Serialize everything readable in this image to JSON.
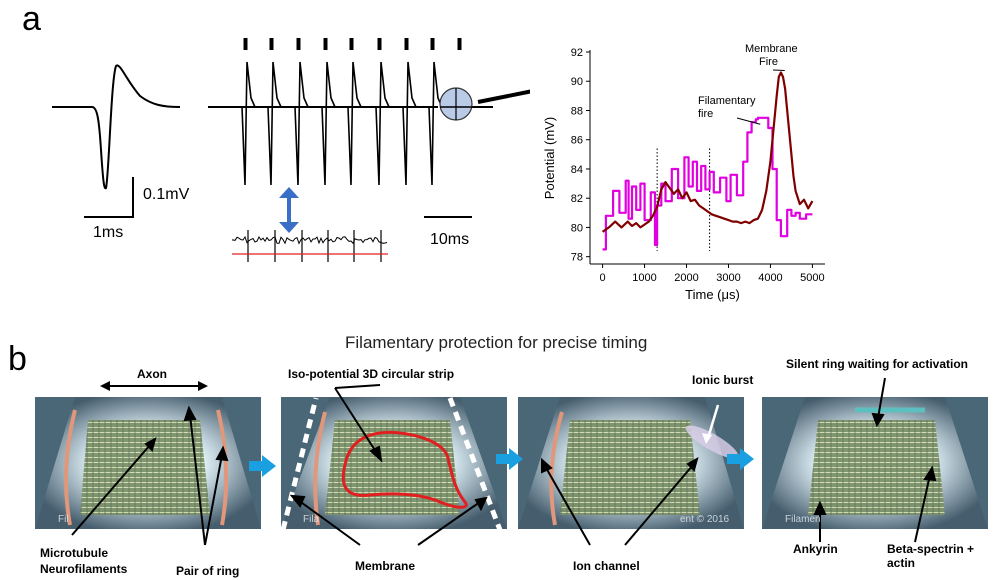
{
  "panel_a": {
    "label": "a",
    "scalebar_voltage": "0.1mV",
    "scalebar_time_single": "1ms",
    "scalebar_time_train": "10ms"
  },
  "chart_data": {
    "type": "line",
    "title": "",
    "xlabel": "Time (μs)",
    "ylabel": "Potential (mV)",
    "xlim": [
      -300,
      5300
    ],
    "ylim": [
      77.5,
      92
    ],
    "xticks": [
      0,
      1000,
      2000,
      3000,
      4000,
      5000
    ],
    "yticks": [
      78,
      80,
      82,
      84,
      86,
      88,
      90,
      92
    ],
    "grid": false,
    "vlines": [
      1300,
      2550
    ],
    "annotations": [
      {
        "text": "Membrane\nFire",
        "x": 4270,
        "y": 90.6
      },
      {
        "text": "Filamentary\nfire",
        "x": 3900,
        "y": 87.4
      }
    ],
    "series": [
      {
        "color": "#e000e0",
        "x": [
          0,
          80,
          80,
          250,
          250,
          400,
          400,
          550,
          550,
          620,
          620,
          700,
          700,
          800,
          800,
          900,
          900,
          1000,
          1000,
          1150,
          1150,
          1250,
          1250,
          1300,
          1300,
          1400,
          1400,
          1500,
          1500,
          1650,
          1650,
          1800,
          1800,
          1950,
          1950,
          2050,
          2050,
          2150,
          2150,
          2250,
          2250,
          2350,
          2350,
          2450,
          2450,
          2550,
          2550,
          2650,
          2650,
          2800,
          2800,
          2950,
          2950,
          3050,
          3050,
          3200,
          3200,
          3350,
          3350,
          3450,
          3450,
          3550,
          3550,
          3650,
          3650,
          3700,
          3700,
          3950,
          3950,
          4050,
          4050,
          4150,
          4150,
          4250,
          4250,
          4400,
          4400,
          4500,
          4500,
          4600,
          4600,
          4700,
          4700,
          4850,
          4850,
          5000
        ],
        "y": [
          78.5,
          78.5,
          80.8,
          80.8,
          82.5,
          82.5,
          81.0,
          81.0,
          83.2,
          83.2,
          80.6,
          80.6,
          82.8,
          82.8,
          81.2,
          81.2,
          83.0,
          83.0,
          80.5,
          80.5,
          82.4,
          82.4,
          78.8,
          78.8,
          81.5,
          81.5,
          83.0,
          83.0,
          81.8,
          81.8,
          84.0,
          84.0,
          82.0,
          82.0,
          84.8,
          84.8,
          82.8,
          82.8,
          84.5,
          84.5,
          82.5,
          82.5,
          84.2,
          84.2,
          82.6,
          82.6,
          83.8,
          83.8,
          82.4,
          82.4,
          83.4,
          83.4,
          81.8,
          81.8,
          83.6,
          83.6,
          82.2,
          82.2,
          84.5,
          84.5,
          86.5,
          86.5,
          87.2,
          87.2,
          87.4,
          87.4,
          87.5,
          87.5,
          86.8,
          86.8,
          84.0,
          84.0,
          80.5,
          80.5,
          79.4,
          79.4,
          81.2,
          81.2,
          80.8,
          80.8,
          81.0,
          81.0,
          80.6,
          80.6,
          80.9,
          80.9
        ]
      },
      {
        "color": "#800000",
        "x": [
          0,
          150,
          300,
          450,
          600,
          700,
          800,
          900,
          1000,
          1100,
          1200,
          1300,
          1400,
          1500,
          1600,
          1700,
          1800,
          1900,
          2000,
          2100,
          2200,
          2300,
          2400,
          2500,
          2600,
          2700,
          2800,
          2900,
          3000,
          3100,
          3200,
          3300,
          3400,
          3500,
          3600,
          3700,
          3800,
          3900,
          4000,
          4100,
          4150,
          4200,
          4250,
          4300,
          4350,
          4400,
          4450,
          4500,
          4550,
          4600,
          4700,
          4800,
          4900,
          5000
        ],
        "y": [
          79.7,
          80.0,
          80.4,
          80.0,
          80.4,
          80.1,
          80.3,
          80.0,
          80.2,
          80.4,
          80.8,
          81.4,
          82.6,
          83.1,
          82.7,
          82.3,
          82.6,
          82.0,
          82.4,
          81.8,
          81.9,
          81.5,
          81.3,
          81.1,
          80.9,
          80.8,
          80.7,
          80.6,
          80.5,
          80.4,
          80.4,
          80.3,
          80.4,
          80.3,
          80.5,
          80.6,
          81.2,
          82.5,
          84.5,
          87.5,
          89.0,
          90.3,
          90.6,
          90.3,
          89.5,
          88.0,
          86.5,
          85.0,
          83.5,
          82.5,
          81.6,
          81.9,
          81.3,
          81.8
        ]
      }
    ]
  },
  "panel_b": {
    "label": "b",
    "heading": "Filamentary protection for precise timing",
    "labels": {
      "axon": "Axon",
      "iso_strip": "Iso-potential 3D circular strip",
      "ionic_burst": "Ionic burst",
      "silent_ring": "Silent ring waiting for activation",
      "microtubule_line1": "Microtubule",
      "microtubule_line2": "Neurofilaments",
      "pair_of_ring": "Pair of ring",
      "membrane": "Membrane",
      "ion_channel": "Ion channel",
      "ankyrin": "Ankyrin",
      "beta_spectrin": "Beta-spectrin + actin"
    },
    "watermarks": [
      "Fil",
      "Fila",
      "ent © 2016",
      "Filamen"
    ]
  }
}
